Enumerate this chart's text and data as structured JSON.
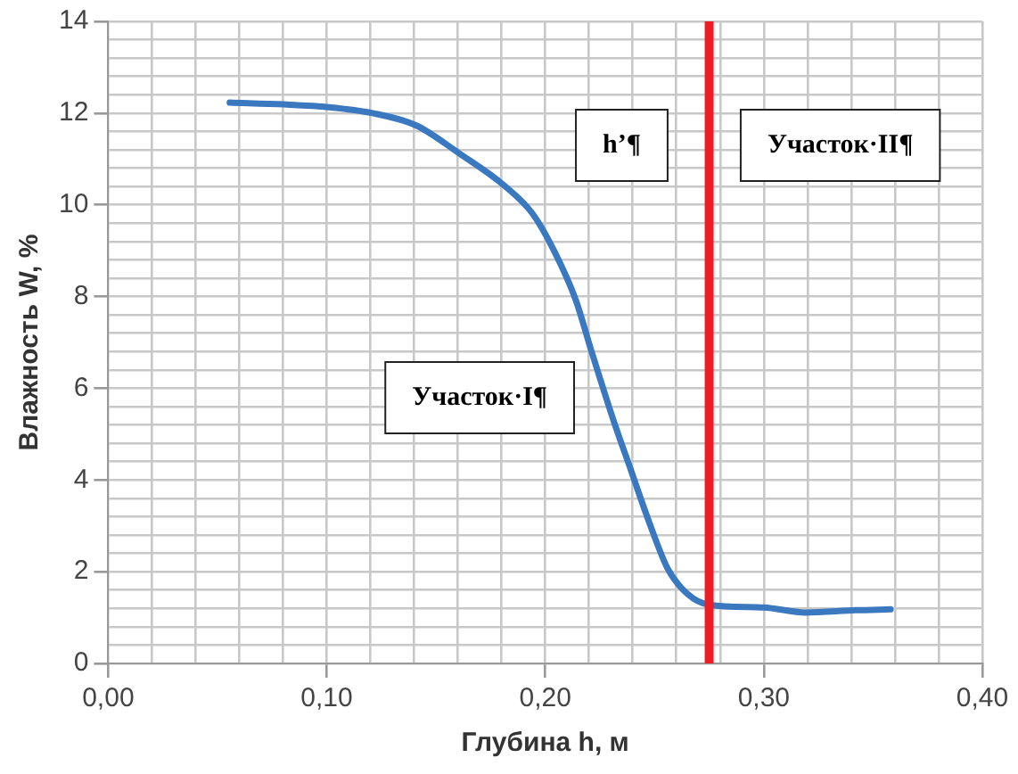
{
  "chart_data": {
    "type": "line",
    "xlabel": "Глубина h, м",
    "ylabel": "Влажность W, %",
    "x": [
      0.0556,
      0.0806,
      0.101,
      0.121,
      0.141,
      0.161,
      0.181,
      0.194,
      0.204,
      0.214,
      0.221,
      0.231,
      0.239,
      0.248,
      0.256,
      0.265,
      0.275,
      0.3,
      0.319,
      0.342,
      0.358
    ],
    "series": [
      {
        "color": "#3a78c0",
        "values": [
          12.23,
          12.19,
          12.13,
          12.0,
          11.73,
          11.11,
          10.43,
          9.82,
          9.0,
          7.92,
          6.83,
          5.33,
          4.24,
          3.02,
          2.07,
          1.52,
          1.28,
          1.22,
          1.11,
          1.16,
          1.18
        ]
      }
    ],
    "xlim": [
      0,
      0.4
    ],
    "xticks": [
      {
        "value": 0,
        "label": "0,00"
      },
      {
        "value": 0.02,
        "label": null
      },
      {
        "value": 0.04,
        "label": null
      },
      {
        "value": 0.06,
        "label": null
      },
      {
        "value": 0.08,
        "label": null
      },
      {
        "value": 0.1,
        "label": "0,10"
      },
      {
        "value": 0.12,
        "label": null
      },
      {
        "value": 0.14,
        "label": null
      },
      {
        "value": 0.16,
        "label": null
      },
      {
        "value": 0.18,
        "label": null
      },
      {
        "value": 0.2,
        "label": "0,20"
      },
      {
        "value": 0.22,
        "label": null
      },
      {
        "value": 0.24,
        "label": null
      },
      {
        "value": 0.26,
        "label": null
      },
      {
        "value": 0.28,
        "label": null
      },
      {
        "value": 0.3,
        "label": "0,30"
      },
      {
        "value": 0.32,
        "label": null
      },
      {
        "value": 0.34,
        "label": null
      },
      {
        "value": 0.36,
        "label": null
      },
      {
        "value": 0.38,
        "label": null
      },
      {
        "value": 0.4,
        "label": "0,40"
      }
    ],
    "ylim": [
      0,
      14
    ],
    "yticks": [
      0,
      {
        "value": 0.4,
        "label": null
      },
      {
        "value": 0.8,
        "label": null
      },
      {
        "value": 1.2,
        "label": null
      },
      {
        "value": 1.6,
        "label": null
      },
      2,
      {
        "value": 2.4,
        "label": null
      },
      {
        "value": 2.8,
        "label": null
      },
      {
        "value": 3.2,
        "label": null
      },
      {
        "value": 3.6,
        "label": null
      },
      4,
      {
        "value": 4.4,
        "label": null
      },
      {
        "value": 4.8,
        "label": null
      },
      {
        "value": 5.2,
        "label": null
      },
      {
        "value": 5.6,
        "label": null
      },
      6,
      {
        "value": 6.4,
        "label": null
      },
      {
        "value": 6.8,
        "label": null
      },
      {
        "value": 7.2,
        "label": null
      },
      {
        "value": 7.6,
        "label": null
      },
      8,
      {
        "value": 8.4,
        "label": null
      },
      {
        "value": 8.8,
        "label": null
      },
      {
        "value": 9.2,
        "label": null
      },
      {
        "value": 9.6,
        "label": null
      },
      10,
      {
        "value": 10.4,
        "label": null
      },
      {
        "value": 10.8,
        "label": null
      },
      {
        "value": 11.2,
        "label": null
      },
      {
        "value": 11.6,
        "label": null
      },
      12,
      {
        "value": 12.4,
        "label": null
      },
      {
        "value": 12.8,
        "label": null
      },
      {
        "value": 13.2,
        "label": null
      },
      {
        "value": 13.6,
        "label": null
      },
      14
    ],
    "ref_lines": [
      {
        "axis": "x",
        "value": 0.275,
        "color": "#ee1c25"
      }
    ],
    "annotations": [
      "Участок·I¶",
      "h’¶",
      "Участок·II¶"
    ],
    "grid": true,
    "legend": false,
    "marker": "none",
    "line_style": "solid"
  }
}
